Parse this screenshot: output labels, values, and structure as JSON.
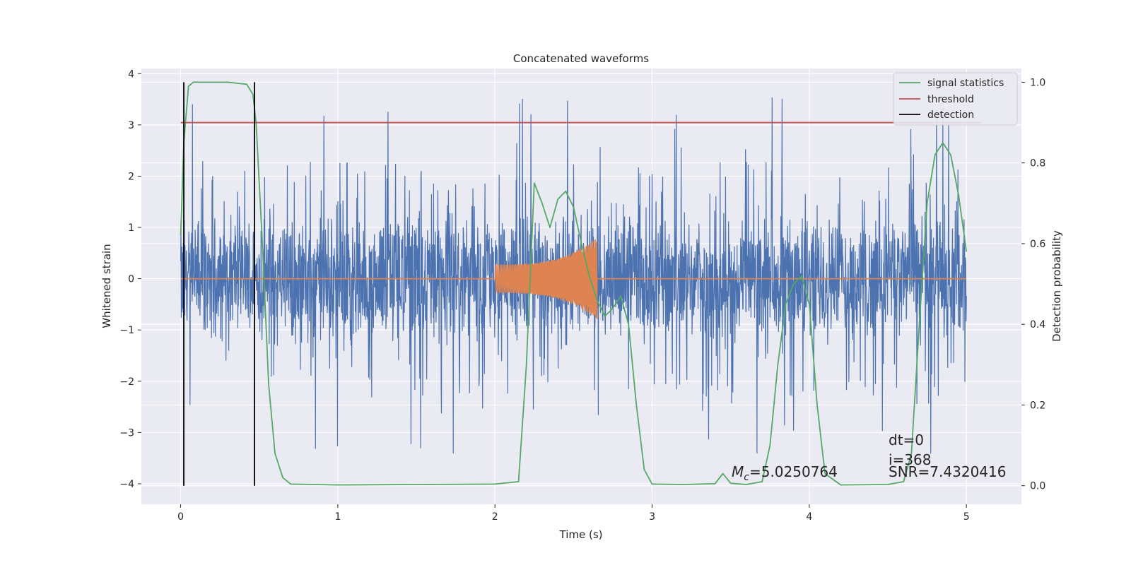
{
  "chart_data": {
    "type": "line",
    "title": "Concatenated waveforms",
    "xlabel": "Time (s)",
    "ylabel": "Whitened strain",
    "y2label": "Detection probability",
    "xlim": [
      -0.25,
      5.35
    ],
    "ylim": [
      -4.4,
      4.1
    ],
    "y2lim": [
      -0.046,
      1.034
    ],
    "xticks": [
      0,
      1,
      2,
      3,
      4,
      5
    ],
    "yticks": [
      -4,
      -3,
      -2,
      -1,
      0,
      1,
      2,
      3,
      4
    ],
    "y2ticks": [
      0.0,
      0.2,
      0.4,
      0.6,
      0.8,
      1.0
    ],
    "grid": true,
    "legend_position": "top-right",
    "colors": {
      "background": "#eaeaf2",
      "strain": "#4c72b0",
      "template": "#dd8452",
      "signal": "#55a868",
      "threshold": "#c44e52",
      "detection": "#000000",
      "grid": "#ffffff"
    },
    "legend": [
      {
        "label": "signal statistics",
        "color": "#55a868"
      },
      {
        "label": "threshold",
        "color": "#c44e52"
      },
      {
        "label": "detection",
        "color": "#000000"
      }
    ],
    "series": [
      {
        "name": "strain",
        "style": "noise",
        "x_range": [
          0,
          5
        ],
        "typical_upper": 1.3,
        "typical_lower": -1.1,
        "peak_max": 3.7,
        "peak_min": -4.0
      },
      {
        "name": "template",
        "style": "chirp",
        "x_range": [
          2.0,
          2.65
        ],
        "amplitude_start": 0.28,
        "amplitude_end": 0.8
      },
      {
        "name": "signal statistics",
        "axis": "right",
        "x": [
          0.0,
          0.02,
          0.05,
          0.08,
          0.15,
          0.3,
          0.42,
          0.46,
          0.48,
          0.52,
          0.56,
          0.6,
          0.65,
          0.7,
          1.0,
          1.5,
          2.0,
          2.15,
          2.2,
          2.25,
          2.3,
          2.35,
          2.4,
          2.45,
          2.5,
          2.55,
          2.6,
          2.65,
          2.7,
          2.75,
          2.8,
          2.85,
          2.9,
          2.95,
          3.0,
          3.2,
          3.4,
          3.45,
          3.5,
          3.6,
          3.7,
          3.75,
          3.8,
          3.85,
          3.9,
          3.95,
          4.0,
          4.05,
          4.1,
          4.2,
          4.5,
          4.6,
          4.65,
          4.7,
          4.75,
          4.8,
          4.85,
          4.9,
          4.95,
          5.0
        ],
        "y": [
          0.62,
          0.85,
          0.99,
          1.0,
          1.0,
          1.0,
          0.995,
          0.97,
          0.9,
          0.6,
          0.25,
          0.08,
          0.02,
          0.004,
          0.002,
          0.003,
          0.004,
          0.01,
          0.3,
          0.75,
          0.7,
          0.64,
          0.71,
          0.73,
          0.69,
          0.6,
          0.52,
          0.46,
          0.42,
          0.44,
          0.47,
          0.4,
          0.2,
          0.04,
          0.004,
          0.003,
          0.005,
          0.03,
          0.006,
          0.003,
          0.01,
          0.1,
          0.3,
          0.45,
          0.5,
          0.52,
          0.45,
          0.2,
          0.03,
          0.002,
          0.003,
          0.01,
          0.08,
          0.4,
          0.7,
          0.82,
          0.85,
          0.82,
          0.72,
          0.58
        ]
      },
      {
        "name": "threshold",
        "axis": "right",
        "x": [
          0.0,
          5.1
        ],
        "y": [
          0.9,
          0.9
        ]
      },
      {
        "name": "detection",
        "axis": "right",
        "style": "vlines",
        "x": [
          0.02,
          0.47
        ],
        "y_range": [
          0.0,
          1.0
        ]
      }
    ],
    "annotations": {
      "mc_text": "=5.0250764",
      "dt_text": "dt=0",
      "i_text": "i=368",
      "snr_text": "SNR=7.4320416"
    }
  }
}
